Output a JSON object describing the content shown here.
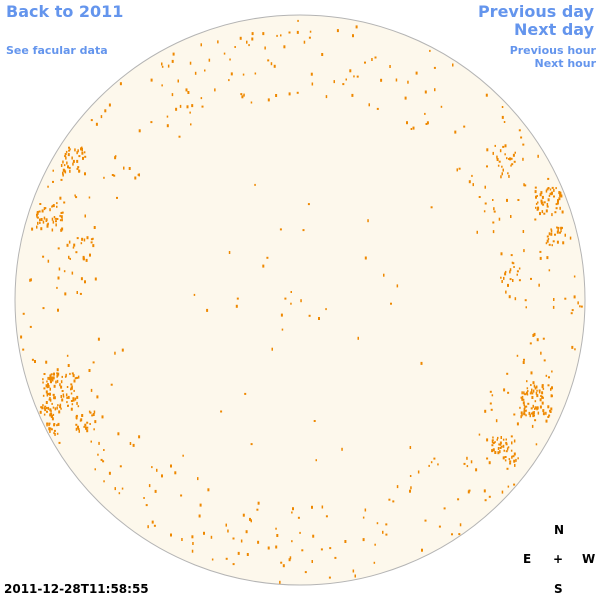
{
  "nav": {
    "back_label": "Back to 2011",
    "facular_label": "See facular data",
    "prev_day_label": "Previous day",
    "next_day_label": "Next day",
    "prev_hour_label": "Previous hour",
    "next_hour_label": "Next hour"
  },
  "compass": {
    "north": "N",
    "east": "E",
    "center": "+",
    "west": "W",
    "south": "S"
  },
  "timestamp": "2011-12-28T11:58:55",
  "colors": {
    "link": "#6495ed",
    "disk_fill": "#fdf8ec",
    "disk_stroke": "#b4b4b4",
    "facula": "#ee8800",
    "text": "#000000",
    "background": "#ffffff"
  }
}
